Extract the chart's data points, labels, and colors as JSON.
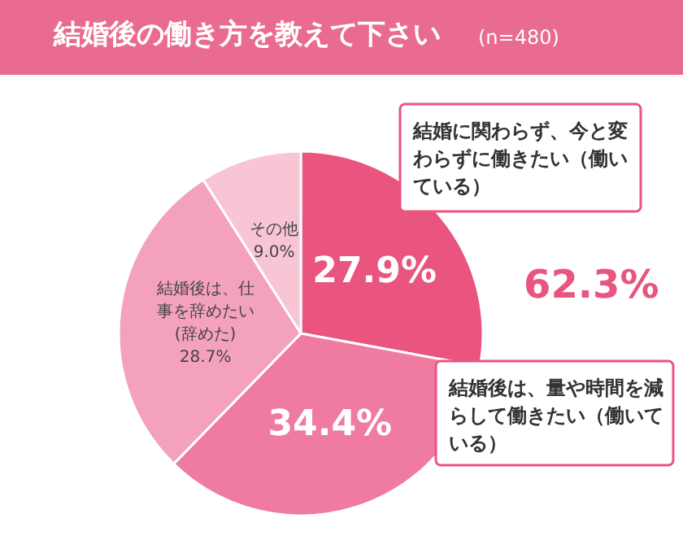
{
  "chart_data": {
    "type": "pie",
    "title": "結婚後の働き方を教えて下さい",
    "subtitle": "(n=480)",
    "categories": [
      "結婚に関わらず、今と変わらずに働きたい（働いている）",
      "結婚後は、量や時間を減らして働きたい（働いている）",
      "結婚後は、仕事を辞めたい(辞めた)",
      "その他"
    ],
    "values": [
      27.9,
      34.4,
      28.7,
      9.0
    ],
    "value_labels": [
      "27.9%",
      "34.4%",
      "28.7%",
      "9.0%"
    ],
    "colors": [
      "#e9557f",
      "#f07ba0",
      "#f4a2bc",
      "#f8c5d4"
    ],
    "annotations": [
      "62.3%"
    ],
    "legend": false
  }
}
